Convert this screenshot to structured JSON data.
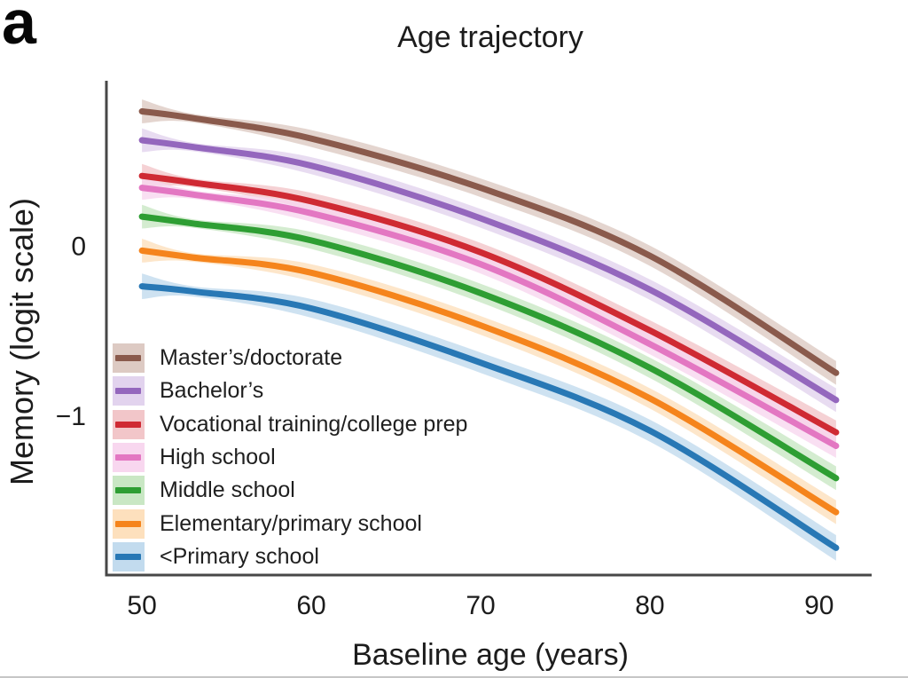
{
  "panel_label": "a",
  "title": "Age trajectory",
  "axes": {
    "x_label": "Baseline age (years)",
    "y_label": "Memory (logit scale)",
    "x_ticks": [
      {
        "value": 50,
        "label": "50"
      },
      {
        "value": 60,
        "label": "60"
      },
      {
        "value": 70,
        "label": "70"
      },
      {
        "value": 80,
        "label": "80"
      },
      {
        "value": 90,
        "label": "90"
      }
    ],
    "y_ticks": [
      {
        "value": 0,
        "label": "0"
      },
      {
        "value": -1,
        "label": "−1"
      }
    ]
  },
  "colors": {
    "axis": "#474747",
    "text": "#1c1c1c",
    "background": "#ffffff",
    "bottom_border": "#c6c6c6"
  },
  "chart_data": {
    "type": "line",
    "title": "Age trajectory",
    "xlabel": "Baseline age (years)",
    "ylabel": "Memory (logit scale)",
    "grid": false,
    "legend_position": "lower-left-inside",
    "xlim": [
      47.9,
      93.1
    ],
    "ylim": [
      -1.94,
      0.97
    ],
    "x": [
      50,
      53,
      60,
      70,
      80,
      91
    ],
    "series": [
      {
        "name": "Master’s/doctorate",
        "color": "#8a5a4c",
        "band_color": "#ddcac3",
        "values": [
          0.79,
          0.75,
          0.63,
          0.34,
          -0.06,
          -0.75
        ],
        "band_halfwidth": [
          0.07,
          0.025,
          0.05,
          0.055,
          0.06,
          0.07
        ]
      },
      {
        "name": "Bachelor’s",
        "color": "#9467bd",
        "band_color": "#e2d3ee",
        "values": [
          0.62,
          0.58,
          0.47,
          0.16,
          -0.26,
          -0.91
        ],
        "band_halfwidth": [
          0.07,
          0.025,
          0.05,
          0.055,
          0.06,
          0.07
        ]
      },
      {
        "name": "Vocational training/college prep",
        "color": "#cf2a33",
        "band_color": "#f2c6c9",
        "values": [
          0.41,
          0.37,
          0.26,
          -0.04,
          -0.5,
          -1.1
        ],
        "band_halfwidth": [
          0.07,
          0.025,
          0.05,
          0.055,
          0.06,
          0.07
        ]
      },
      {
        "name": "High school",
        "color": "#e377c2",
        "band_color": "#f8d7ef",
        "values": [
          0.34,
          0.3,
          0.19,
          -0.11,
          -0.58,
          -1.18
        ],
        "band_halfwidth": [
          0.07,
          0.025,
          0.05,
          0.055,
          0.06,
          0.07
        ]
      },
      {
        "name": "Middle school",
        "color": "#2e9e33",
        "band_color": "#c9e7c4",
        "values": [
          0.17,
          0.13,
          0.03,
          -0.28,
          -0.72,
          -1.37
        ],
        "band_halfwidth": [
          0.07,
          0.025,
          0.05,
          0.055,
          0.06,
          0.07
        ]
      },
      {
        "name": "Elementary/primary school",
        "color": "#f5841c",
        "band_color": "#fde0bd",
        "values": [
          -0.03,
          -0.07,
          -0.16,
          -0.47,
          -0.9,
          -1.57
        ],
        "band_halfwidth": [
          0.07,
          0.025,
          0.05,
          0.055,
          0.06,
          0.07
        ]
      },
      {
        "name": "<Primary school",
        "color": "#2878b5",
        "band_color": "#c2dbee",
        "values": [
          -0.24,
          -0.27,
          -0.37,
          -0.69,
          -1.09,
          -1.78
        ],
        "band_halfwidth": [
          0.075,
          0.03,
          0.055,
          0.06,
          0.065,
          0.075
        ]
      }
    ]
  }
}
